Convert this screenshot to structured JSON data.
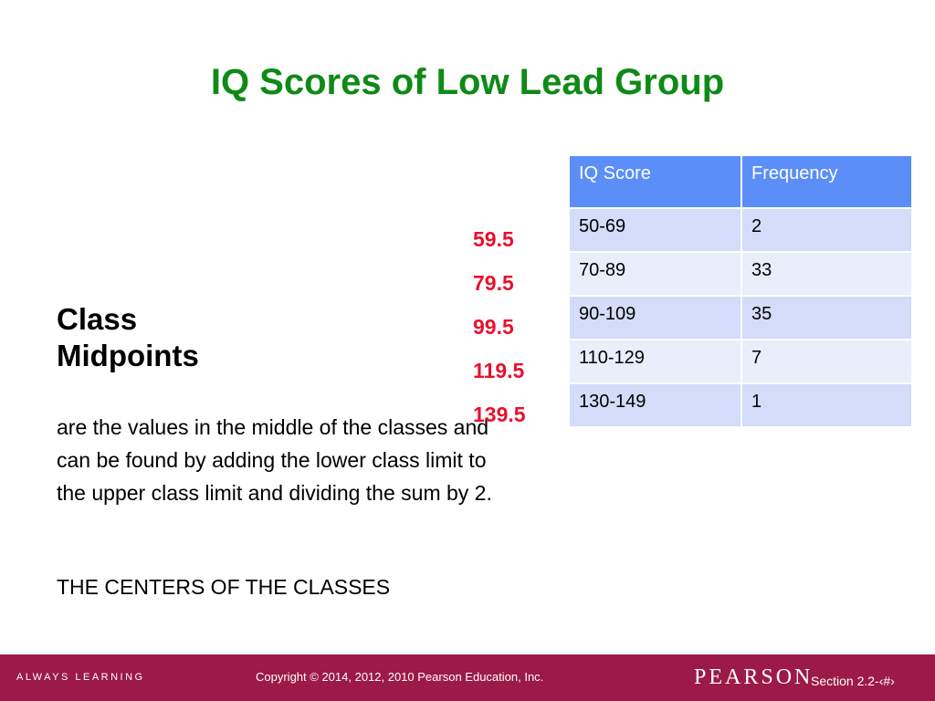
{
  "title": "IQ Scores of Low Lead Group",
  "heading": {
    "line1": "Class",
    "line2": "Midpoints"
  },
  "definition": "are the values in the middle of the classes and can be found by adding the lower class limit to the upper class limit and dividing the sum by 2.",
  "emphasis": "THE CENTERS OF THE CLASSES",
  "midpoints": [
    "59.5",
    "79.5",
    "99.5",
    "119.5",
    "139.5"
  ],
  "table": {
    "headers": [
      "IQ Score",
      "Frequency"
    ],
    "rows": [
      [
        "50-69",
        "2"
      ],
      [
        "70-89",
        "33"
      ],
      [
        "90-109",
        "35"
      ],
      [
        "110-129",
        "7"
      ],
      [
        "130-149",
        "1"
      ]
    ]
  },
  "footer": {
    "tagline": "ALWAYS LEARNING",
    "copyright": "Copyright © 2014, 2012, 2010 Pearson Education, Inc.",
    "logo": "PEARSON",
    "section": "Section 2.2-‹#›"
  },
  "colors": {
    "title": "#0e8a16",
    "midpoints": "#e8112d",
    "table_header": "#5b8ef6",
    "table_row_odd": "#d3dcf8",
    "table_row_even": "#e9eefb",
    "footer": "#9b1a47"
  }
}
